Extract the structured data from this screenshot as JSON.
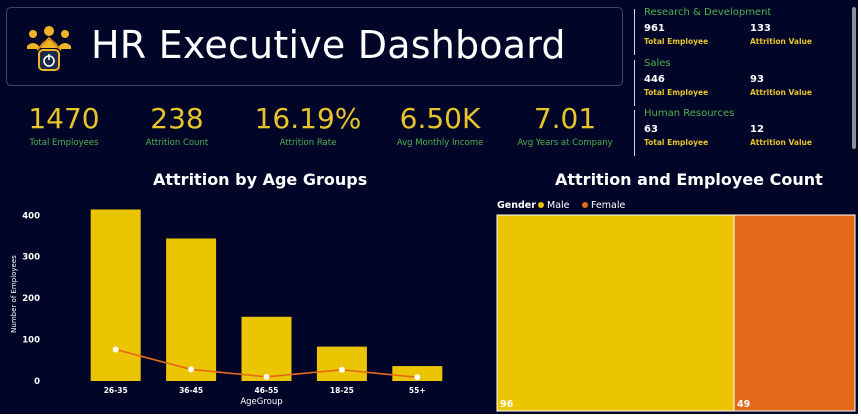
{
  "header": {
    "title": "HR Executive Dashboard",
    "logo_icon": "employee-network-icon"
  },
  "kpis": [
    {
      "value": "1470",
      "label": "Total Employees"
    },
    {
      "value": "238",
      "label": "Attrition Count"
    },
    {
      "value": "16.19%",
      "label": "Attrition Rate"
    },
    {
      "value": "6.50K",
      "label": "Avg Monthly Income"
    },
    {
      "value": "7.01",
      "label": "Avg Years at Company"
    }
  ],
  "departments": [
    {
      "name": "Research & Development",
      "total": "961",
      "attrition": "133",
      "total_label": "Total Employee",
      "attrition_label": "Attrition Value"
    },
    {
      "name": "Sales",
      "total": "446",
      "attrition": "93",
      "total_label": "Total Employee",
      "attrition_label": "Attrition Value"
    },
    {
      "name": "Human Resources",
      "total": "63",
      "attrition": "12",
      "total_label": "Total Employee",
      "attrition_label": "Attrition Value"
    }
  ],
  "colors": {
    "background": "#010628",
    "accent_yellow": "#e8c42a",
    "accent_green": "#4fb04f",
    "bar_yellow": "#ebc402",
    "female_orange": "#e46a1a",
    "line_orange": "#e46a1a"
  },
  "chart_data": [
    {
      "type": "bar",
      "title": "Attrition by Age Groups",
      "xlabel": "AgeGroup",
      "ylabel": "Number of Employees",
      "categories": [
        "26-35",
        "36-45",
        "46-55",
        "18-25",
        "55+"
      ],
      "yticks": [
        0,
        100,
        200,
        300,
        400
      ],
      "ylim": [
        0,
        420
      ],
      "series": [
        {
          "type": "bar",
          "values": [
            414,
            344,
            155,
            83,
            36
          ]
        },
        {
          "type": "line",
          "values": [
            76,
            28,
            10,
            27,
            9
          ]
        }
      ]
    },
    {
      "type": "treemap",
      "title": "Attrition and Employee Count",
      "legend_title": "Gender",
      "categories": [
        "Male",
        "Female"
      ],
      "values": [
        96,
        49
      ],
      "labels": [
        "96",
        "49"
      ]
    }
  ]
}
